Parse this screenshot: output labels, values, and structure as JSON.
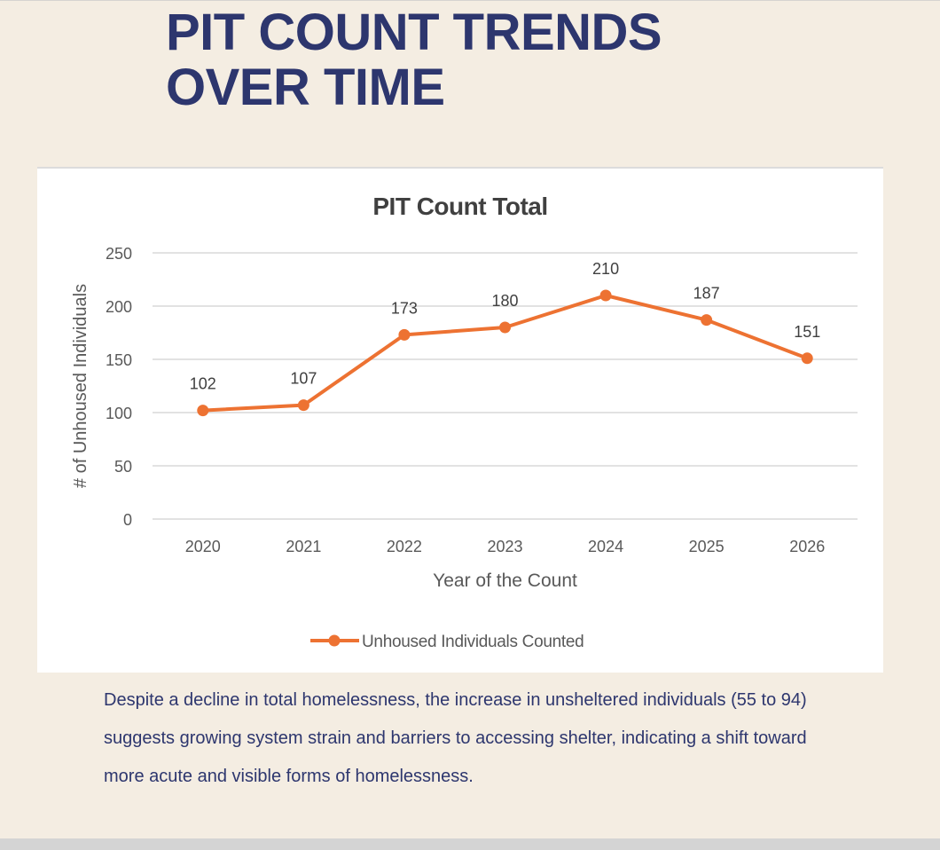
{
  "page": {
    "title_lines": [
      "PIT COUNT TRENDS",
      "OVER TIME"
    ],
    "summary": "Despite a decline in total homelessness, the increase in unsheltered individuals (55 to 94) suggests growing system strain and barriers to accessing shelter, indicating a shift toward more acute and visible forms of homelessness."
  },
  "colors": {
    "title": "#2d366e",
    "series": "#ed7232",
    "grid": "#d9d9d9",
    "axis_text": "#595959",
    "background": "#f4ede2"
  },
  "chart_data": {
    "type": "line",
    "title": "PIT Count Total",
    "xlabel": "Year of the Count",
    "ylabel": "# of Unhoused Individuals",
    "categories": [
      "2020",
      "2021",
      "2022",
      "2023",
      "2024",
      "2025",
      "2026"
    ],
    "series": [
      {
        "name": "Unhoused Individuals Counted",
        "values": [
          102,
          107,
          173,
          180,
          210,
          187,
          151
        ]
      }
    ],
    "ylim": [
      0,
      250
    ],
    "yticks": [
      0,
      50,
      100,
      150,
      200,
      250
    ],
    "grid": true,
    "legend": "bottom",
    "data_labels": true
  }
}
